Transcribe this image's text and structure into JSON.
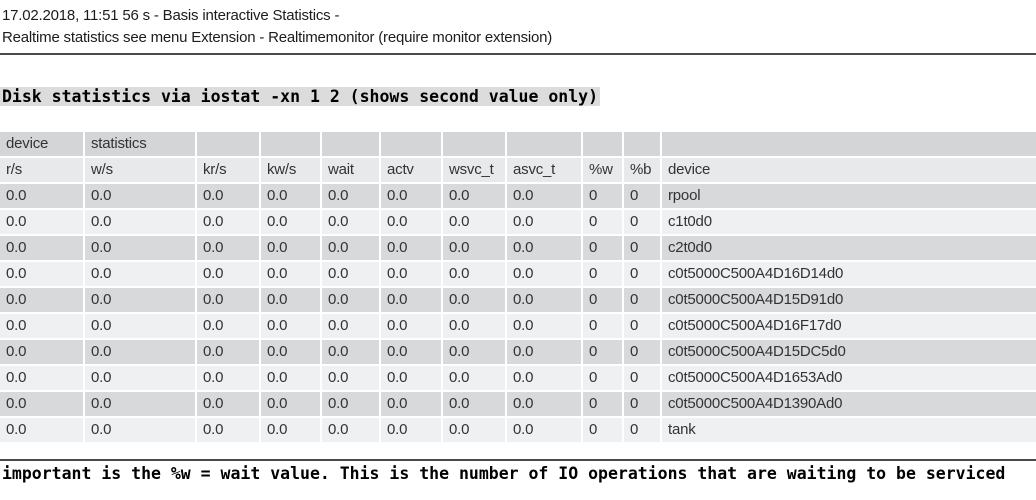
{
  "header": {
    "line1": "17.02.2018, 11:51 56 s - Basis interactive Statistics -",
    "line2": "Realtime statistics see menu Extension - Realtimemonitor (require monitor extension)"
  },
  "section": {
    "title": "Disk statistics via iostat -xn 1 2 (shows second value only)"
  },
  "table": {
    "group_headers": [
      "device",
      "statistics"
    ],
    "columns": [
      "r/s",
      "w/s",
      "kr/s",
      "kw/s",
      "wait",
      "actv",
      "wsvc_t",
      "asvc_t",
      "%w",
      "%b",
      "device"
    ],
    "rows": [
      {
        "values": [
          "0.0",
          "0.0",
          "0.0",
          "0.0",
          "0.0",
          "0.0",
          "0.0",
          "0.0",
          "0",
          "0"
        ],
        "device": "rpool"
      },
      {
        "values": [
          "0.0",
          "0.0",
          "0.0",
          "0.0",
          "0.0",
          "0.0",
          "0.0",
          "0.0",
          "0",
          "0"
        ],
        "device": "c1t0d0"
      },
      {
        "values": [
          "0.0",
          "0.0",
          "0.0",
          "0.0",
          "0.0",
          "0.0",
          "0.0",
          "0.0",
          "0",
          "0"
        ],
        "device": "c2t0d0"
      },
      {
        "values": [
          "0.0",
          "0.0",
          "0.0",
          "0.0",
          "0.0",
          "0.0",
          "0.0",
          "0.0",
          "0",
          "0"
        ],
        "device": "c0t5000C500A4D16D14d0"
      },
      {
        "values": [
          "0.0",
          "0.0",
          "0.0",
          "0.0",
          "0.0",
          "0.0",
          "0.0",
          "0.0",
          "0",
          "0"
        ],
        "device": "c0t5000C500A4D15D91d0"
      },
      {
        "values": [
          "0.0",
          "0.0",
          "0.0",
          "0.0",
          "0.0",
          "0.0",
          "0.0",
          "0.0",
          "0",
          "0"
        ],
        "device": "c0t5000C500A4D16F17d0"
      },
      {
        "values": [
          "0.0",
          "0.0",
          "0.0",
          "0.0",
          "0.0",
          "0.0",
          "0.0",
          "0.0",
          "0",
          "0"
        ],
        "device": "c0t5000C500A4D15DC5d0"
      },
      {
        "values": [
          "0.0",
          "0.0",
          "0.0",
          "0.0",
          "0.0",
          "0.0",
          "0.0",
          "0.0",
          "0",
          "0"
        ],
        "device": "c0t5000C500A4D1653Ad0"
      },
      {
        "values": [
          "0.0",
          "0.0",
          "0.0",
          "0.0",
          "0.0",
          "0.0",
          "0.0",
          "0.0",
          "0",
          "0"
        ],
        "device": "c0t5000C500A4D1390Ad0"
      },
      {
        "values": [
          "0.0",
          "0.0",
          "0.0",
          "0.0",
          "0.0",
          "0.0",
          "0.0",
          "0.0",
          "0",
          "0"
        ],
        "device": "tank"
      }
    ]
  },
  "footer": {
    "note": "important is the %w = wait value. This is the number of IO operations that are waiting to be serviced"
  },
  "colors": {
    "rule": "#4a4a4a",
    "heading_highlight_bg": "#dcdcdc",
    "group_header_row_bg": "#d4d5d7",
    "column_header_row_bg": "#e8e9eb",
    "row_dark_bg": "#d8d9db",
    "row_light_bg": "#eff0f2",
    "table_text": "#333333"
  }
}
